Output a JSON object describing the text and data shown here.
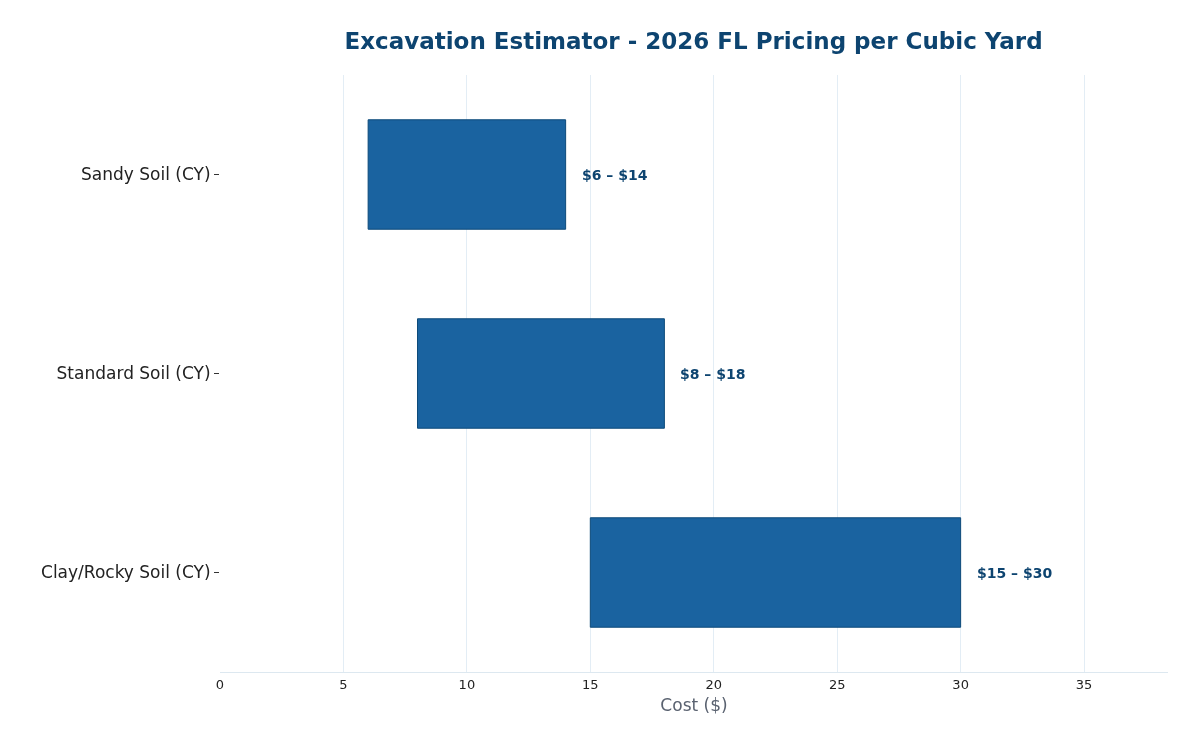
{
  "chart_data": {
    "type": "bar",
    "orientation": "horizontal",
    "title": "Excavation Estimator - 2026 FL Pricing per Cubic Yard",
    "xlabel": "Cost ($)",
    "categories": [
      "Sandy Soil (CY)",
      "Standard Soil (CY)",
      "Clay/Rocky Soil (CY)"
    ],
    "base": [
      6,
      8,
      15
    ],
    "values": [
      8,
      10,
      15
    ],
    "annotations": [
      {
        "text": "$6 – $14",
        "x": 14,
        "y": "Sandy Soil (CY)"
      },
      {
        "text": "$8 – $18",
        "x": 18,
        "y": "Standard Soil (CY)"
      },
      {
        "text": "$15 – $30",
        "x": 30,
        "y": "Clay/Rocky Soil (CY)"
      }
    ],
    "color": "#1a63a0",
    "xlim": [
      0,
      38.4
    ],
    "xticks": [
      0,
      5,
      10,
      15,
      20,
      25,
      30,
      35
    ],
    "grid": "x",
    "legend": false
  }
}
